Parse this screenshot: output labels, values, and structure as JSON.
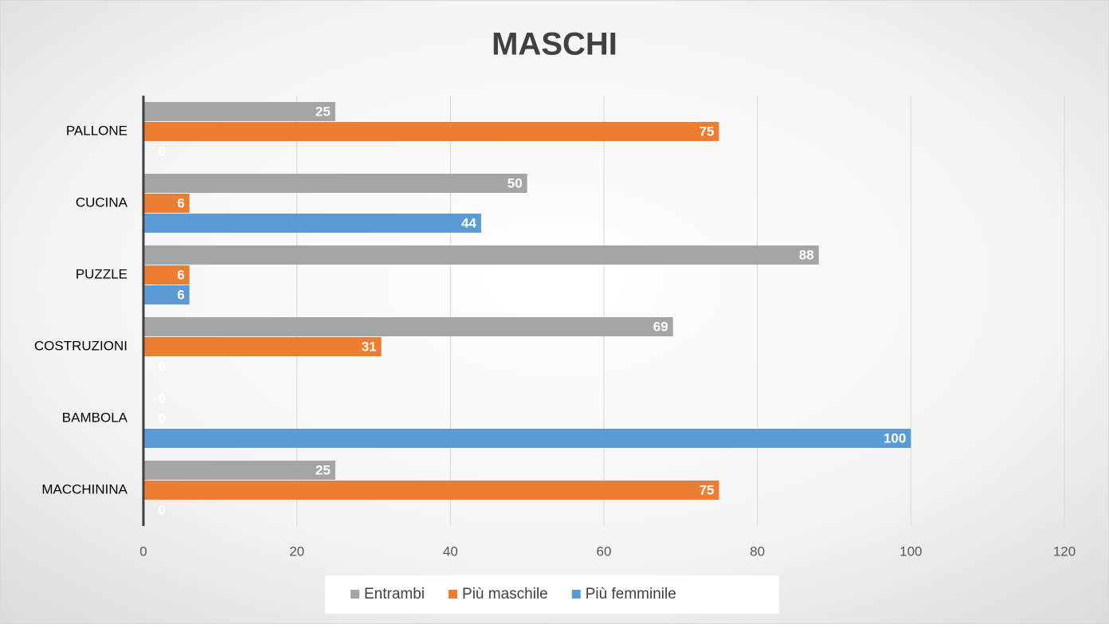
{
  "chart_data": {
    "type": "bar",
    "orientation": "horizontal",
    "title": "MASCHI",
    "categories": [
      "PALLONE",
      "CUCINA",
      "PUZZLE",
      "COSTRUZIONI",
      "BAMBOLA",
      "MACCHININA"
    ],
    "series": [
      {
        "name": "Entrambi",
        "color": "#a5a5a5",
        "values": [
          25,
          50,
          88,
          69,
          0,
          25
        ]
      },
      {
        "name": "Più maschile",
        "color": "#ed7d31",
        "values": [
          75,
          6,
          6,
          31,
          0,
          75
        ]
      },
      {
        "name": "Più femminile",
        "color": "#5b9bd5",
        "values": [
          0,
          44,
          6,
          0,
          100,
          0
        ]
      }
    ],
    "xlim": [
      0,
      120
    ],
    "xticks": [
      0,
      20,
      40,
      60,
      80,
      100,
      120
    ],
    "grid": true,
    "legend": "bottom"
  }
}
